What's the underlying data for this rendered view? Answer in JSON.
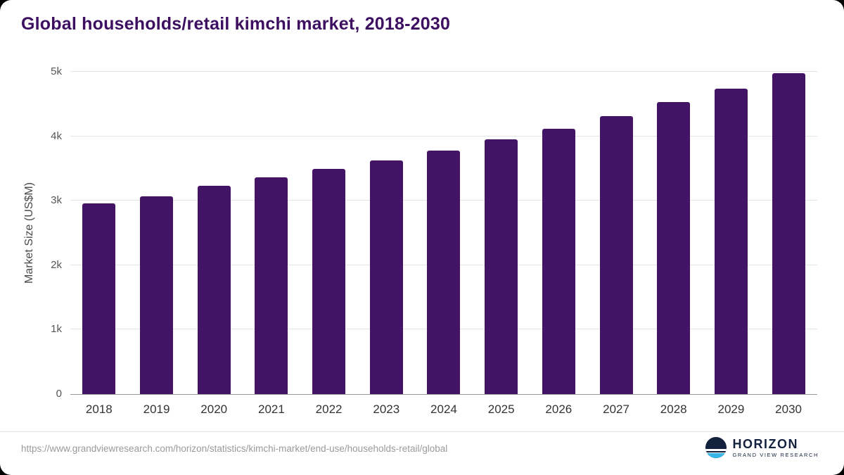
{
  "header": {
    "title": "Global households/retail kimchi market, 2018-2030"
  },
  "chart_data": {
    "type": "bar",
    "title": "Global households/retail kimchi market, 2018-2030",
    "xlabel": "",
    "ylabel": "Market Size (US$M)",
    "ylim": [
      0,
      5000
    ],
    "grid": "horizontal",
    "legend": "none",
    "bar_color": "#431366",
    "categories": [
      "2018",
      "2019",
      "2020",
      "2021",
      "2022",
      "2023",
      "2024",
      "2025",
      "2026",
      "2027",
      "2028",
      "2029",
      "2030"
    ],
    "values": [
      2960,
      3070,
      3230,
      3360,
      3490,
      3630,
      3780,
      3950,
      4120,
      4310,
      4530,
      4740,
      4980
    ],
    "yticks": [
      {
        "value": 0,
        "label": "0"
      },
      {
        "value": 1000,
        "label": "1k"
      },
      {
        "value": 2000,
        "label": "2k"
      },
      {
        "value": 3000,
        "label": "3k"
      },
      {
        "value": 4000,
        "label": "4k"
      },
      {
        "value": 5000,
        "label": "5k"
      }
    ]
  },
  "footer": {
    "source_url": "https://www.grandviewresearch.com/horizon/statistics/kimchi-market/end-use/households-retail/global",
    "logo_name": "HORIZON",
    "logo_subtitle": "GRAND VIEW RESEARCH"
  },
  "colors": {
    "bar": "#431366",
    "title": "#3d0f60",
    "gridline": "#e5e5e5",
    "axis_line": "#9a9a9a",
    "logo_navy": "#14213e",
    "logo_blue": "#38b6e8"
  }
}
